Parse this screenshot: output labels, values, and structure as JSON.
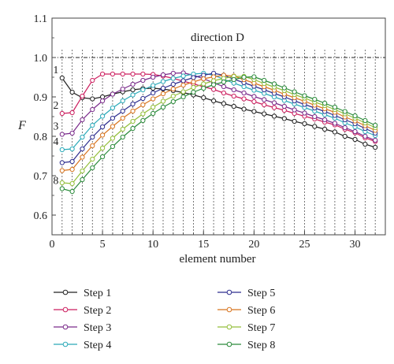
{
  "chart_data": {
    "type": "line",
    "annotation": "direction D",
    "xlabel": "element number",
    "ylabel": "F",
    "xlim": [
      0,
      33
    ],
    "ylim": [
      0.55,
      1.1
    ],
    "x_ticks": [
      0,
      5,
      10,
      15,
      20,
      25,
      30
    ],
    "x_tick_labels": [
      "0",
      "5",
      "10",
      "15",
      "20",
      "25",
      "30"
    ],
    "y_ticks": [
      0.6,
      0.7,
      0.8,
      0.9,
      1.0,
      1.1
    ],
    "y_tick_labels": [
      "0.6",
      "0.7",
      "0.8",
      "0.9",
      "1.0",
      "1.1"
    ],
    "reference_line": 1.0,
    "vertical_dotted_lines_at": [
      1,
      2,
      3,
      4,
      5,
      6,
      7,
      8,
      9,
      10,
      11,
      12,
      13,
      14,
      15,
      16,
      17,
      18,
      19,
      20,
      21,
      22,
      23,
      24,
      25,
      26,
      27,
      28,
      29,
      30,
      31,
      32
    ],
    "legend_placement": "bottom, two columns",
    "x": [
      1,
      2,
      3,
      4,
      5,
      6,
      7,
      8,
      9,
      10,
      11,
      12,
      13,
      14,
      15,
      16,
      17,
      18,
      19,
      20,
      21,
      22,
      23,
      24,
      25,
      26,
      27,
      28,
      29,
      30,
      31,
      32
    ],
    "series": [
      {
        "name": "Step 1",
        "color": "#222222",
        "curve_label": "1",
        "label_color": "#222222",
        "values": [
          0.948,
          0.912,
          0.898,
          0.895,
          0.9,
          0.907,
          0.913,
          0.918,
          0.921,
          0.922,
          0.92,
          0.916,
          0.911,
          0.905,
          0.898,
          0.89,
          0.883,
          0.876,
          0.869,
          0.863,
          0.857,
          0.851,
          0.845,
          0.838,
          0.832,
          0.825,
          0.818,
          0.811,
          0.8,
          0.792,
          0.78,
          0.772
        ]
      },
      {
        "name": "Step 2",
        "color": "#cc1f5f",
        "curve_label": "2",
        "label_color": "#cc1f5f",
        "values": [
          0.858,
          0.86,
          0.902,
          0.942,
          0.958,
          0.958,
          0.958,
          0.958,
          0.958,
          0.957,
          0.953,
          0.947,
          0.94,
          0.933,
          0.926,
          0.919,
          0.91,
          0.902,
          0.895,
          0.888,
          0.88,
          0.873,
          0.866,
          0.858,
          0.851,
          0.844,
          0.836,
          0.829,
          0.818,
          0.809,
          0.796,
          0.787
        ]
      },
      {
        "name": "Step 3",
        "color": "#7a2a8a",
        "curve_label": "3",
        "label_color": "#7a2a8a",
        "values": [
          0.805,
          0.808,
          0.842,
          0.868,
          0.89,
          0.907,
          0.92,
          0.932,
          0.942,
          0.95,
          0.956,
          0.96,
          0.961,
          0.955,
          0.946,
          0.936,
          0.926,
          0.918,
          0.91,
          0.901,
          0.893,
          0.885,
          0.876,
          0.867,
          0.859,
          0.85,
          0.842,
          0.833,
          0.822,
          0.812,
          0.8,
          0.79
        ]
      },
      {
        "name": "Step 4",
        "color": "#2aa9b8",
        "curve_label": "4",
        "label_color": "#2aa9b8",
        "values": [
          0.766,
          0.768,
          0.798,
          0.828,
          0.851,
          0.872,
          0.89,
          0.905,
          0.918,
          0.929,
          0.939,
          0.947,
          0.953,
          0.958,
          0.96,
          0.955,
          0.945,
          0.935,
          0.926,
          0.917,
          0.909,
          0.9,
          0.891,
          0.882,
          0.873,
          0.864,
          0.855,
          0.846,
          0.834,
          0.824,
          0.812,
          0.802
        ]
      },
      {
        "name": "Step 5",
        "color": "#2e2e8f",
        "curve_label": "",
        "label_color": "#2e2e8f",
        "values": [
          0.733,
          0.736,
          0.768,
          0.798,
          0.824,
          0.846,
          0.864,
          0.882,
          0.896,
          0.91,
          0.922,
          0.932,
          0.941,
          0.949,
          0.955,
          0.96,
          0.955,
          0.945,
          0.936,
          0.927,
          0.918,
          0.909,
          0.9,
          0.89,
          0.881,
          0.872,
          0.863,
          0.853,
          0.842,
          0.832,
          0.82,
          0.808
        ]
      },
      {
        "name": "Step 6",
        "color": "#d8741f",
        "curve_label": "",
        "label_color": "#d8741f",
        "values": [
          0.713,
          0.716,
          0.747,
          0.776,
          0.803,
          0.825,
          0.846,
          0.864,
          0.88,
          0.895,
          0.908,
          0.92,
          0.93,
          0.938,
          0.946,
          0.951,
          0.955,
          0.953,
          0.944,
          0.935,
          0.926,
          0.917,
          0.907,
          0.898,
          0.889,
          0.879,
          0.87,
          0.861,
          0.849,
          0.839,
          0.827,
          0.815
        ]
      },
      {
        "name": "Step 7",
        "color": "#93bf3a",
        "curve_label": "",
        "label_color": "#93bf3a",
        "values": [
          0.682,
          0.68,
          0.712,
          0.742,
          0.77,
          0.795,
          0.818,
          0.838,
          0.857,
          0.874,
          0.889,
          0.902,
          0.913,
          0.924,
          0.933,
          0.941,
          0.947,
          0.952,
          0.952,
          0.944,
          0.934,
          0.925,
          0.916,
          0.906,
          0.897,
          0.887,
          0.878,
          0.868,
          0.857,
          0.846,
          0.834,
          0.822
        ]
      },
      {
        "name": "Step 8",
        "color": "#2a8a3a",
        "curve_label": "8",
        "label_color": "#2a8a3a",
        "values": [
          0.667,
          0.66,
          0.69,
          0.72,
          0.748,
          0.774,
          0.798,
          0.82,
          0.84,
          0.858,
          0.874,
          0.888,
          0.9,
          0.912,
          0.922,
          0.931,
          0.938,
          0.944,
          0.95,
          0.951,
          0.942,
          0.933,
          0.923,
          0.913,
          0.903,
          0.894,
          0.884,
          0.874,
          0.863,
          0.852,
          0.84,
          0.828
        ]
      }
    ]
  }
}
